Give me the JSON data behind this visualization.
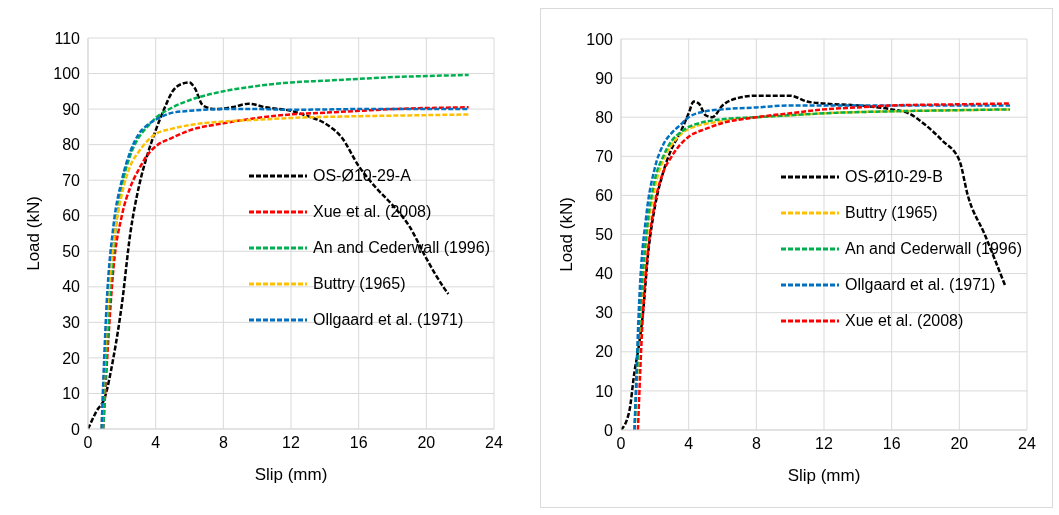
{
  "chart_data": [
    {
      "type": "line",
      "xlabel": "Slip (mm)",
      "ylabel": "Load (kN)",
      "xlim": [
        0,
        24
      ],
      "xticks": [
        0,
        4,
        8,
        12,
        16,
        20,
        24
      ],
      "ylim": [
        0,
        110
      ],
      "yticks": [
        0,
        10,
        20,
        30,
        40,
        50,
        60,
        70,
        80,
        90,
        100,
        110
      ],
      "grid": true,
      "legend": "right",
      "line_style": "dashed",
      "marker": "none",
      "series": [
        {
          "name": "OS-Ø10-29-A",
          "color": "#000000",
          "x": [
            0,
            0.5,
            1,
            1.5,
            2,
            2.5,
            3,
            3.5,
            4,
            4.5,
            5,
            5.5,
            6,
            6.3,
            6.8,
            7.5,
            8.5,
            9.5,
            10.5,
            12,
            13,
            14,
            15,
            16,
            17,
            18,
            19,
            20,
            21,
            21.3
          ],
          "values": [
            0,
            5,
            9,
            20,
            35,
            55,
            68,
            77,
            84,
            90,
            95,
            97,
            97.5,
            96,
            91,
            90,
            90.5,
            91.5,
            90.5,
            89.5,
            88,
            86,
            82,
            74,
            68,
            63,
            57,
            48,
            40,
            38
          ]
        },
        {
          "name": "Xue et al. (2008)",
          "color": "#ff0000",
          "x": [
            0.9,
            1.2,
            1.5,
            2,
            2.5,
            3,
            3.5,
            4,
            5,
            6,
            8,
            10,
            12,
            14,
            16,
            18,
            20,
            22.5
          ],
          "values": [
            0,
            25,
            45,
            60,
            68,
            73,
            77,
            79.5,
            82,
            84,
            86,
            87.5,
            88.5,
            89,
            89.5,
            90,
            90.3,
            90.5
          ]
        },
        {
          "name": "An and Cederwall (1996)",
          "color": "#00b050",
          "x": [
            0.9,
            1.2,
            1.5,
            2,
            2.5,
            3,
            3.5,
            4,
            5,
            6,
            8,
            10,
            12,
            14,
            16,
            18,
            20,
            22.5
          ],
          "values": [
            0,
            30,
            50,
            68,
            77,
            82,
            85,
            87.5,
            90.5,
            92.5,
            95,
            96.5,
            97.5,
            98,
            98.5,
            99,
            99.3,
            99.6
          ]
        },
        {
          "name": "Buttry (1965)",
          "color": "#ffc000",
          "x": [
            0.8,
            1.1,
            1.5,
            2,
            2.5,
            3,
            3.5,
            4,
            5,
            6,
            8,
            10,
            12,
            16,
            20,
            22.5
          ],
          "values": [
            0,
            30,
            52,
            66,
            74,
            78,
            81,
            83,
            84.5,
            85.5,
            86.5,
            87,
            87.5,
            88,
            88.3,
            88.5
          ]
        },
        {
          "name": "Ollgaard et al. (1971)",
          "color": "#0070c0",
          "x": [
            0.8,
            1.1,
            1.5,
            2,
            2.5,
            3,
            3.5,
            4,
            5,
            6,
            8,
            10,
            12,
            16,
            20,
            22.5
          ],
          "values": [
            0,
            35,
            57,
            70,
            78,
            83,
            85.5,
            87,
            89,
            89.5,
            90,
            90,
            89.8,
            90,
            90,
            90
          ]
        }
      ]
    },
    {
      "type": "line",
      "xlabel": "Slip (mm)",
      "ylabel": "Load (kN)",
      "xlim": [
        0,
        24
      ],
      "xticks": [
        0,
        4,
        8,
        12,
        16,
        20,
        24
      ],
      "ylim": [
        0,
        100
      ],
      "yticks": [
        0,
        10,
        20,
        30,
        40,
        50,
        60,
        70,
        80,
        90,
        100
      ],
      "grid": true,
      "legend": "right",
      "line_style": "dashed",
      "marker": "none",
      "series": [
        {
          "name": "OS-Ø10-29-B",
          "color": "#000000",
          "x": [
            0,
            0.5,
            0.8,
            1,
            1.3,
            1.6,
            2,
            2.5,
            3,
            3.5,
            4,
            4.3,
            4.6,
            5,
            5.4,
            6,
            7,
            8,
            9,
            10,
            11,
            12,
            14,
            16,
            17,
            18,
            19,
            20,
            20.5,
            21.5,
            22.7
          ],
          "values": [
            0,
            5,
            15,
            20,
            30,
            45,
            57,
            66,
            72,
            76,
            81,
            84,
            83.5,
            80.5,
            80,
            83,
            85,
            85.5,
            85.5,
            85.5,
            84,
            83.5,
            83,
            82,
            81,
            78,
            74,
            69,
            60,
            50,
            37
          ]
        },
        {
          "name": "Buttry (1965)",
          "color": "#ffc000",
          "x": [
            0.8,
            1.1,
            1.5,
            2,
            2.5,
            3,
            3.5,
            4,
            6,
            8,
            10,
            12,
            16,
            20,
            23
          ],
          "values": [
            0,
            25,
            48,
            62,
            69,
            73,
            75.5,
            77,
            79,
            80,
            80.5,
            81,
            81.5,
            81.8,
            82
          ]
        },
        {
          "name": "An and Cederwall (1996)",
          "color": "#00b050",
          "x": [
            0.8,
            1.1,
            1.5,
            2,
            2.5,
            3,
            3.5,
            4,
            6,
            8,
            10,
            12,
            16,
            20,
            23
          ],
          "values": [
            0,
            28,
            50,
            64,
            70,
            74,
            76,
            77.5,
            79.5,
            80,
            80.5,
            81,
            81.5,
            81.8,
            82
          ]
        },
        {
          "name": "Ollgaard et al. (1971)",
          "color": "#0070c0",
          "x": [
            0.8,
            1.1,
            1.5,
            2,
            2.5,
            3,
            3.5,
            4,
            5,
            6,
            8,
            10,
            12,
            16,
            20,
            23
          ],
          "values": [
            0,
            35,
            55,
            67,
            73,
            76,
            78,
            80,
            81.5,
            82,
            82.5,
            83,
            83,
            83,
            83,
            83
          ]
        },
        {
          "name": "Xue et al. (2008)",
          "color": "#ff0000",
          "x": [
            1,
            1.3,
            1.6,
            2,
            2.5,
            3,
            3.5,
            4,
            5,
            6,
            8,
            10,
            12,
            14,
            16,
            20,
            23
          ],
          "values": [
            0,
            30,
            46,
            58,
            66,
            70,
            73,
            75,
            77,
            78.5,
            80,
            81,
            82,
            82.5,
            83,
            83.3,
            83.5
          ]
        }
      ]
    }
  ]
}
